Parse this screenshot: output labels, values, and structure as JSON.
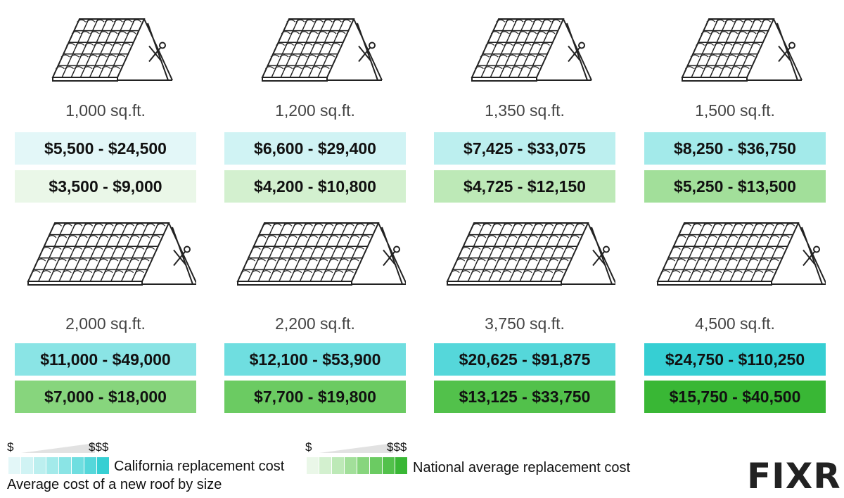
{
  "title": "Average cost of a new roof by size",
  "colors": {
    "california_scale": [
      "#e3f7f8",
      "#d0f3f4",
      "#bcefef",
      "#a3eaea",
      "#8ae4e5",
      "#6fdee0",
      "#55d7da",
      "#36cfd3"
    ],
    "national_scale": [
      "#eaf7e8",
      "#d3f0cf",
      "#bde9b7",
      "#a2df9a",
      "#87d57d",
      "#6bcb62",
      "#52c14b",
      "#39b735"
    ]
  },
  "items": [
    {
      "size": "1,000 sq.ft.",
      "california": "$5,500 - $24,500",
      "national": "$3,500 - $9,000"
    },
    {
      "size": "1,200 sq.ft.",
      "california": "$6,600 - $29,400",
      "national": "$4,200 - $10,800"
    },
    {
      "size": "1,350 sq.ft.",
      "california": "$7,425 - $33,075",
      "national": "$4,725 - $12,150"
    },
    {
      "size": "1,500 sq.ft.",
      "california": "$8,250 - $36,750",
      "national": "$5,250 - $13,500"
    },
    {
      "size": "2,000 sq.ft.",
      "california": "$11,000 - $49,000",
      "national": "$7,000 - $18,000"
    },
    {
      "size": "2,200 sq.ft.",
      "california": "$12,100 - $53,900",
      "national": "$7,700 - $19,800"
    },
    {
      "size": "3,750 sq.ft.",
      "california": "$20,625 - $91,875",
      "national": "$13,125 - $33,750"
    },
    {
      "size": "4,500 sq.ft.",
      "california": "$24,750 - $110,250",
      "national": "$15,750 - $40,500"
    }
  ],
  "legend": {
    "low": "$",
    "high": "$$$",
    "california_label": "California replacement cost",
    "national_label": "National average replacement cost"
  },
  "logo": "FIXR"
}
